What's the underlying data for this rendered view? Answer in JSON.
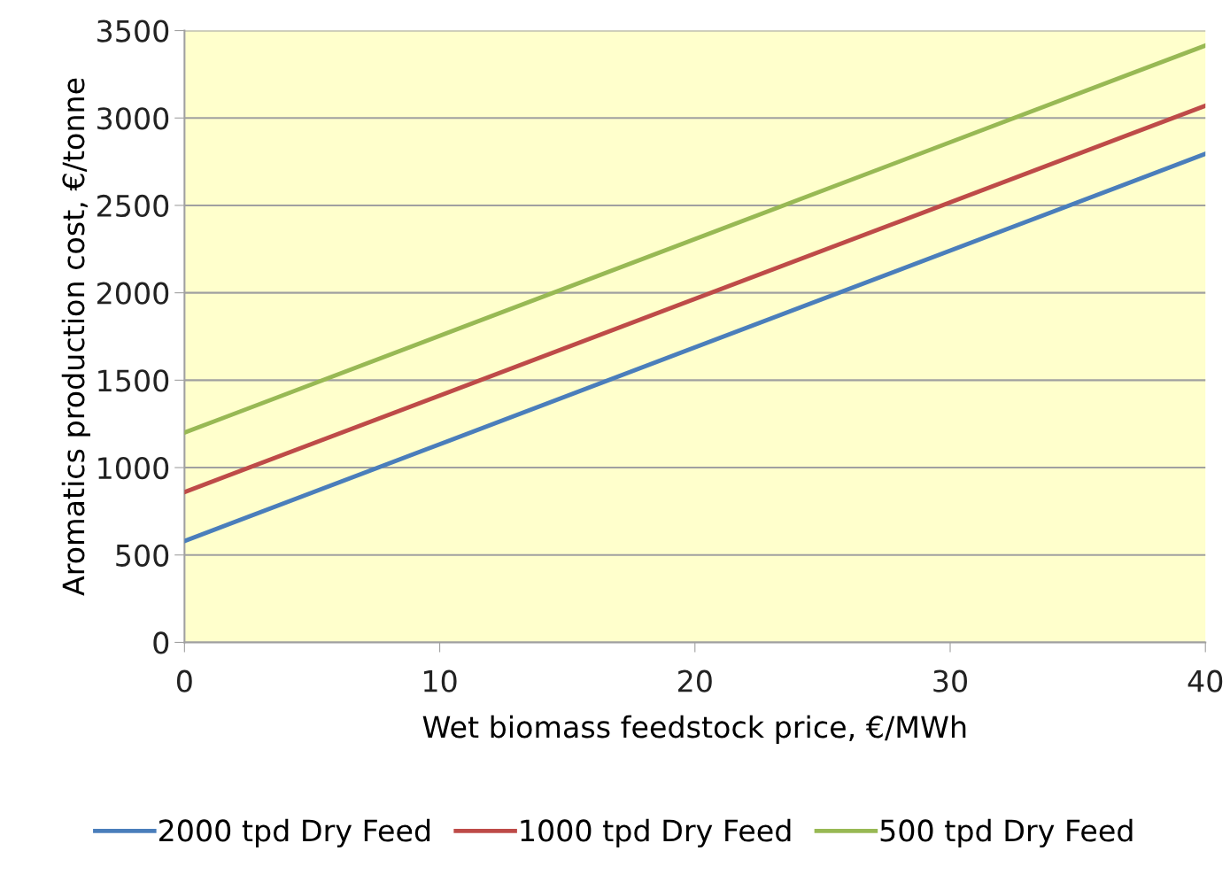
{
  "chart_data": {
    "type": "line",
    "xlabel": "Wet biomass feedstock price, €/MWh",
    "ylabel": "Aromatics production cost, €/tonne",
    "x": [
      0,
      40
    ],
    "series": [
      {
        "name": "2000 tpd Dry Feed",
        "color": "#4a7ebb",
        "values": [
          580,
          2795
        ]
      },
      {
        "name": "1000 tpd Dry Feed",
        "color": "#be4b48",
        "values": [
          860,
          3070
        ]
      },
      {
        "name": "500 tpd Dry Feed",
        "color": "#98b954",
        "values": [
          1200,
          3415
        ]
      }
    ],
    "xlim": [
      0,
      40
    ],
    "xticks": [
      0,
      10,
      20,
      30,
      40
    ],
    "ylim": [
      0,
      3500
    ],
    "yticks": [
      0,
      500,
      1000,
      1500,
      2000,
      2500,
      3000,
      3500
    ],
    "grid": "y",
    "legend": "bottom",
    "marker": "none",
    "line_style": "solid"
  }
}
